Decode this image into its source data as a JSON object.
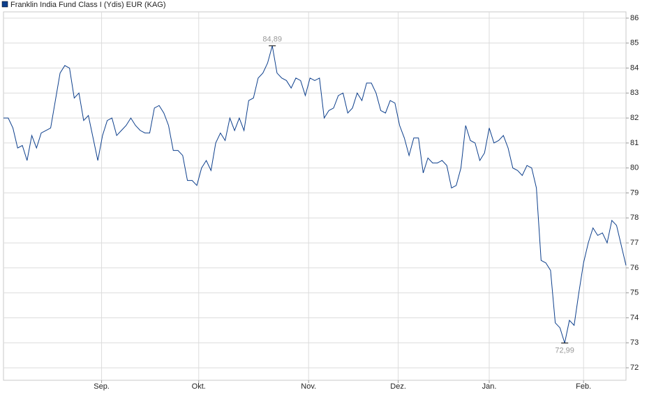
{
  "chart_data": {
    "type": "line",
    "title": "Franklin India Fund Class I (Ydis) EUR (KAG)",
    "series": [
      {
        "name": "Franklin India Fund Class I (Ydis) EUR (KAG)",
        "color": "#0d3f8c",
        "values": [
          82.0,
          82.0,
          81.6,
          80.8,
          80.9,
          80.3,
          81.3,
          80.8,
          81.4,
          81.5,
          81.6,
          82.7,
          83.8,
          84.1,
          84.0,
          82.8,
          83.0,
          81.9,
          82.1,
          81.2,
          80.3,
          81.3,
          81.9,
          82.0,
          81.3,
          81.5,
          81.7,
          82.0,
          81.7,
          81.5,
          81.4,
          81.4,
          82.4,
          82.5,
          82.2,
          81.7,
          80.7,
          80.7,
          80.5,
          79.5,
          79.5,
          79.3,
          80.0,
          80.3,
          79.9,
          81.0,
          81.4,
          81.1,
          82.0,
          81.5,
          82.0,
          81.5,
          82.7,
          82.8,
          83.6,
          83.8,
          84.2,
          84.89,
          83.8,
          83.6,
          83.5,
          83.2,
          83.6,
          83.5,
          82.9,
          83.6,
          83.5,
          83.6,
          82.0,
          82.3,
          82.4,
          82.9,
          83.0,
          82.2,
          82.4,
          83.0,
          82.7,
          83.4,
          83.4,
          83.0,
          82.3,
          82.2,
          82.7,
          82.6,
          81.7,
          81.2,
          80.5,
          81.2,
          81.2,
          79.8,
          80.4,
          80.2,
          80.2,
          80.3,
          80.1,
          79.2,
          79.3,
          80.0,
          81.7,
          81.1,
          81.0,
          80.3,
          80.6,
          81.6,
          81.0,
          81.1,
          81.3,
          80.8,
          80.0,
          79.9,
          79.7,
          80.1,
          80.0,
          79.2,
          76.3,
          76.2,
          75.9,
          73.8,
          73.6,
          72.99,
          73.9,
          73.7,
          75.0,
          76.2,
          77.0,
          77.6,
          77.3,
          77.4,
          77.0,
          77.9,
          77.7,
          76.9,
          76.1
        ],
        "value_labels": [
          null,
          null,
          null,
          null,
          null,
          null,
          null,
          null,
          null,
          null,
          null,
          null,
          null,
          null,
          null,
          null,
          null,
          null,
          null,
          null,
          null,
          null,
          null,
          null,
          null,
          null,
          null,
          null,
          null,
          null,
          null,
          null,
          null,
          null,
          null,
          null,
          null,
          null,
          null,
          null,
          null,
          null,
          null,
          null,
          null,
          null,
          null,
          null,
          null,
          null,
          null,
          null,
          null,
          null,
          null,
          null,
          null,
          "84,89",
          null,
          null,
          null,
          null,
          null,
          null,
          null,
          null,
          null,
          null,
          null,
          null,
          null,
          null,
          null,
          null,
          null,
          null,
          null,
          null,
          null,
          null,
          null,
          null,
          null,
          null,
          null,
          null,
          null,
          null,
          null,
          null,
          null,
          null,
          null,
          null,
          null,
          null,
          null,
          null,
          null,
          null,
          null,
          null,
          null,
          null,
          null,
          null,
          null,
          null,
          null,
          null,
          null,
          null,
          null,
          null,
          null,
          null,
          null,
          null,
          null,
          "72,99",
          null,
          null,
          null,
          null,
          null,
          null,
          null,
          null,
          null,
          null,
          null,
          null,
          null
        ]
      }
    ],
    "xlim": [
      0,
      132
    ],
    "xticks": [
      {
        "value": 20.8,
        "label": "Sep."
      },
      {
        "value": 41.4,
        "label": "Okt."
      },
      {
        "value": 64.7,
        "label": "Nov."
      },
      {
        "value": 83.7,
        "label": "Dez."
      },
      {
        "value": 103,
        "label": "Jan."
      },
      {
        "value": 123,
        "label": "Feb."
      }
    ],
    "ylim": [
      71.5,
      86.25
    ],
    "yticks": [
      72,
      73,
      74,
      75,
      76,
      77,
      78,
      79,
      80,
      81,
      82,
      83,
      84,
      85,
      86
    ],
    "grid": true
  }
}
